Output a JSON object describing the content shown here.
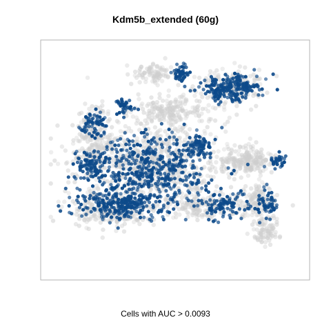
{
  "chart_data": {
    "type": "scatter",
    "title": "Kdm5b_extended (60g)",
    "xlabel": "Cells with AUC > 0.0093",
    "ylabel": "",
    "grid": false,
    "legend": "none",
    "xlim": [
      0,
      100
    ],
    "ylim": [
      0,
      100
    ],
    "colors": {
      "background_cells": "#cfcfcf",
      "active_cells": "#0d4a8a",
      "frame": "#b3b3b3"
    },
    "series": [
      {
        "name": "",
        "role": "background",
        "clusters": [
          {
            "cx": 40,
            "cy": 50,
            "sx": 24,
            "sy": 16,
            "n": 700
          },
          {
            "cx": 25,
            "cy": 28,
            "sx": 14,
            "sy": 6,
            "n": 260
          },
          {
            "cx": 18,
            "cy": 60,
            "sx": 6,
            "sy": 12,
            "n": 160
          },
          {
            "cx": 48,
            "cy": 72,
            "sx": 10,
            "sy": 5,
            "n": 160
          },
          {
            "cx": 42,
            "cy": 88,
            "sx": 7,
            "sy": 4,
            "n": 90
          },
          {
            "cx": 78,
            "cy": 50,
            "sx": 9,
            "sy": 5,
            "n": 220
          },
          {
            "cx": 82,
            "cy": 32,
            "sx": 7,
            "sy": 7,
            "n": 150
          },
          {
            "cx": 72,
            "cy": 82,
            "sx": 12,
            "sy": 7,
            "n": 190
          },
          {
            "cx": 60,
            "cy": 30,
            "sx": 10,
            "sy": 5,
            "n": 150
          },
          {
            "cx": 86,
            "cy": 18,
            "sx": 5,
            "sy": 5,
            "n": 80
          }
        ]
      },
      {
        "name": "",
        "role": "active",
        "clusters": [
          {
            "cx": 40,
            "cy": 45,
            "sx": 20,
            "sy": 14,
            "n": 520
          },
          {
            "cx": 27,
            "cy": 30,
            "sx": 14,
            "sy": 5,
            "n": 230
          },
          {
            "cx": 72,
            "cy": 82,
            "sx": 10,
            "sy": 5,
            "n": 200
          },
          {
            "cx": 52,
            "cy": 88,
            "sx": 2.5,
            "sy": 3,
            "n": 50
          },
          {
            "cx": 60,
            "cy": 56,
            "sx": 4,
            "sy": 4,
            "n": 70
          },
          {
            "cx": 16,
            "cy": 48,
            "sx": 4,
            "sy": 5,
            "n": 70
          },
          {
            "cx": 86,
            "cy": 30,
            "sx": 4,
            "sy": 5,
            "n": 60
          },
          {
            "cx": 70,
            "cy": 30,
            "sx": 8,
            "sy": 5,
            "n": 90
          },
          {
            "cx": 30,
            "cy": 74,
            "sx": 3,
            "sy": 3,
            "n": 40
          },
          {
            "cx": 90,
            "cy": 50,
            "sx": 3,
            "sy": 3,
            "n": 30
          },
          {
            "cx": 18,
            "cy": 66,
            "sx": 5,
            "sy": 5,
            "n": 60
          }
        ]
      }
    ]
  }
}
